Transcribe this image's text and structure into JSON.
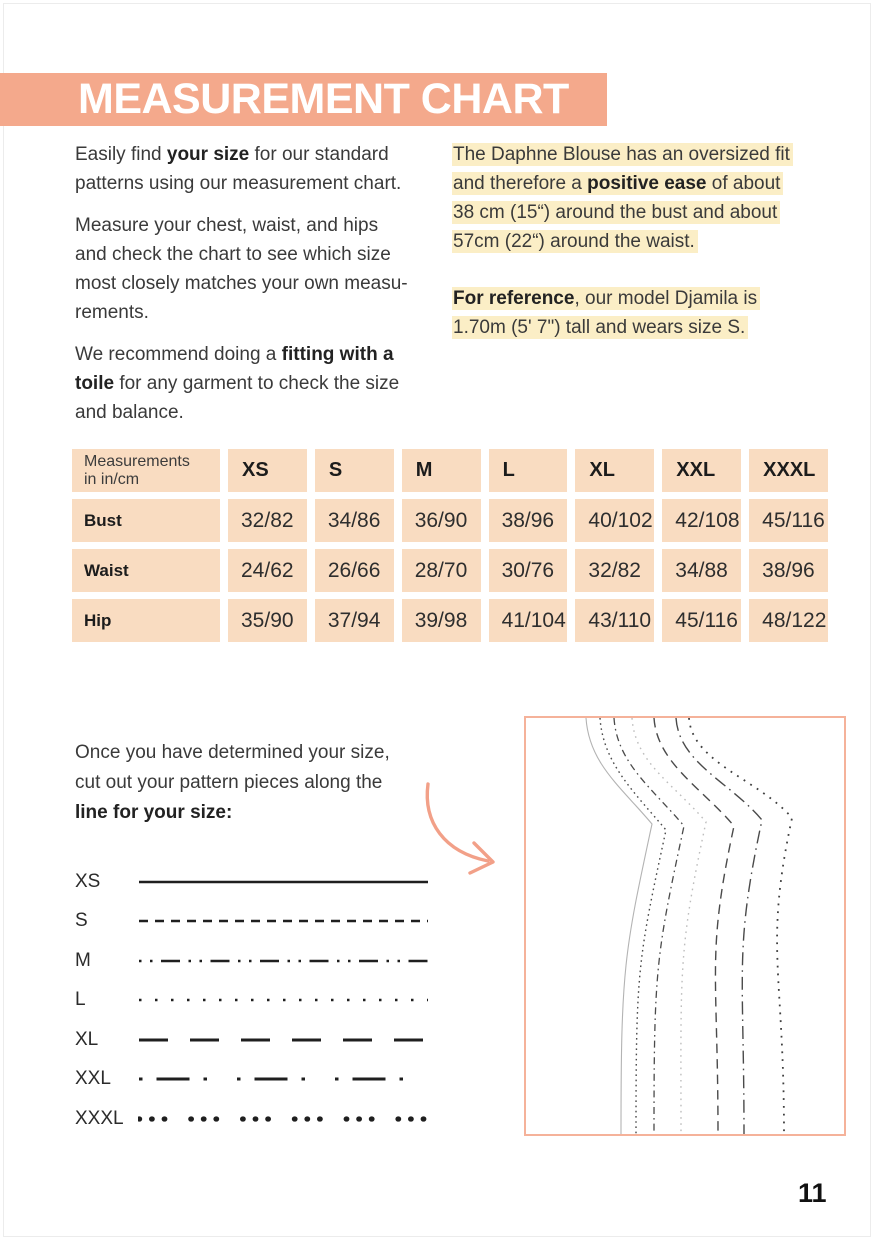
{
  "header": {
    "title": "MEASUREMENT CHART"
  },
  "intro_left": {
    "p1": [
      [
        {
          "t": "Easily find "
        },
        {
          "t": "your size",
          "b": 1
        },
        {
          "t": " for our standard"
        }
      ],
      [
        {
          "t": "patterns using our measurement chart."
        }
      ]
    ],
    "p2": [
      [
        {
          "t": "Measure your chest, waist, and hips"
        }
      ],
      [
        {
          "t": "and check the chart to see which size"
        }
      ],
      [
        {
          "t": "most closely matches your own measu-"
        }
      ],
      [
        {
          "t": "rements."
        }
      ]
    ],
    "p3": [
      [
        {
          "t": "We recommend doing a "
        },
        {
          "t": "fitting with a",
          "b": 1
        }
      ],
      [
        {
          "t": "toile",
          "b": 1
        },
        {
          "t": " for any garment to check the size"
        }
      ],
      [
        {
          "t": "and balance."
        }
      ]
    ]
  },
  "intro_right": {
    "p1": [
      [
        {
          "t": "The Daphne Blouse has an oversized fit",
          "h": 1
        }
      ],
      [
        {
          "t": "and therefore a ",
          "h": 1
        },
        {
          "t": "positive ease",
          "b": 1,
          "h": 1
        },
        {
          "t": " of about",
          "h": 1
        }
      ],
      [
        {
          "t": "38 cm (15“) around the bust and about",
          "h": 1
        }
      ],
      [
        {
          "t": "57cm (22“) around the waist.",
          "h": 1
        }
      ]
    ],
    "p2": [
      [
        {
          "t": "For reference",
          "b": 1,
          "h": 1
        },
        {
          "t": ", our model Djamila is",
          "h": 1
        }
      ],
      [
        {
          "t": "1.70m (5' 7\") tall and wears size S.",
          "h": 1
        }
      ]
    ]
  },
  "size_table": {
    "header_label_line1": "Measurements",
    "header_label_line2": "in in/cm",
    "sizes": [
      "XS",
      "S",
      "M",
      "L",
      "XL",
      "XXL",
      "XXXL"
    ],
    "rows": [
      {
        "label": "Bust",
        "values": [
          "32/82",
          "34/86",
          "36/90",
          "38/96",
          "40/102",
          "42/108",
          "45/116"
        ]
      },
      {
        "label": "Waist",
        "values": [
          "24/62",
          "26/66",
          "28/70",
          "30/76",
          "32/82",
          "34/88",
          "38/96"
        ]
      },
      {
        "label": "Hip",
        "values": [
          "35/90",
          "37/94",
          "39/98",
          "41/104",
          "43/110",
          "45/116",
          "48/122"
        ]
      }
    ]
  },
  "cut_section": {
    "p": [
      [
        {
          "t": "Once you have determined your size,"
        }
      ],
      [
        {
          "t": "cut out your pattern pieces along the"
        }
      ],
      [
        {
          "t": "line for your size:",
          "b": 1
        }
      ]
    ],
    "legend": [
      {
        "label": "XS",
        "line_style": "solid"
      },
      {
        "label": "S",
        "line_style": "dashed"
      },
      {
        "label": "M",
        "line_style": "dot-dot-dash"
      },
      {
        "label": "L",
        "line_style": "dotted"
      },
      {
        "label": "XL",
        "line_style": "long-dash"
      },
      {
        "label": "XXL",
        "line_style": "dot-dash"
      },
      {
        "label": "XXXL",
        "line_style": "bold-dots"
      }
    ]
  },
  "colors": {
    "header_bar": "#f4a98c",
    "table_cell": "#f9dcc1",
    "highlight": "#fbeec6",
    "arrow": "#f2a088",
    "illustration_border": "#f5b29a"
  },
  "page": {
    "number": "11"
  }
}
